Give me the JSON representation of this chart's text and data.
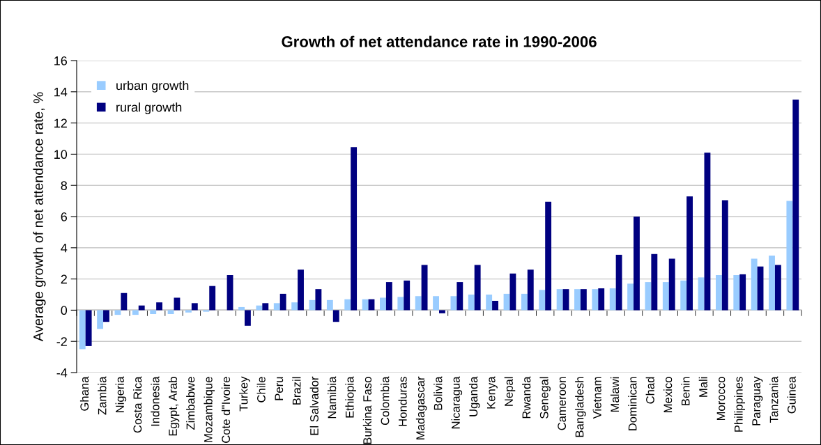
{
  "chart_data": {
    "type": "bar",
    "title": "Growth of net attendance rate in 1990-2006",
    "ylabel": "Average growth of net attendance rate, %",
    "categories": [
      "Ghana",
      "Zambia",
      "Nigeria",
      "Costa Rica",
      "Indonesia",
      "Egypt, Arab",
      "Zimbabwe",
      "Mozambique",
      "Cote d''Ivoire",
      "Turkey",
      "Chile",
      "Peru",
      "Brazil",
      "El Salvador",
      "Namibia",
      "Ethiopia",
      "Burkina Faso",
      "Colombia",
      "Honduras",
      "Madagascar",
      "Bolivia",
      "Nicaragua",
      "Uganda",
      "Kenya",
      "Nepal",
      "Rwanda",
      "Senegal",
      "Cameroon",
      "Bangladesh",
      "Vietnam",
      "Malawi",
      "Dominican",
      "Chad",
      "Mexico",
      "Benin",
      "Mali",
      "Morocco",
      "Philippines",
      "Paraguay",
      "Tanzania",
      "Guinea"
    ],
    "series": [
      {
        "name": "urban growth",
        "color": "#99ccff",
        "values": [
          -2.5,
          -1.2,
          -0.3,
          -0.3,
          -0.25,
          -0.25,
          -0.15,
          -0.1,
          0,
          0.2,
          0.3,
          0.45,
          0.5,
          0.65,
          0.65,
          0.7,
          0.7,
          0.8,
          0.85,
          0.9,
          0.9,
          0.9,
          1.0,
          1.0,
          1.05,
          1.05,
          1.3,
          1.35,
          1.35,
          1.35,
          1.4,
          1.7,
          1.8,
          1.8,
          1.9,
          2.1,
          2.25,
          2.25,
          3.3,
          3.5,
          7.0
        ]
      },
      {
        "name": "rural growth",
        "color": "#000080",
        "values": [
          -2.3,
          -0.75,
          1.1,
          0.3,
          0.5,
          0.8,
          0.45,
          1.55,
          2.25,
          -1.0,
          0.45,
          1.05,
          2.6,
          1.35,
          -0.75,
          10.45,
          0.7,
          1.8,
          1.9,
          2.9,
          -0.2,
          1.8,
          2.9,
          0.6,
          2.35,
          2.6,
          6.95,
          1.35,
          1.35,
          1.4,
          3.55,
          6.0,
          3.6,
          3.3,
          7.3,
          10.1,
          7.05,
          2.3,
          2.8,
          2.9,
          13.5
        ]
      }
    ],
    "ylim": [
      -4,
      16
    ],
    "yticks": [
      -4,
      -2,
      0,
      2,
      4,
      6,
      8,
      10,
      12,
      14,
      16
    ],
    "grid": "y",
    "legend": "top left"
  }
}
